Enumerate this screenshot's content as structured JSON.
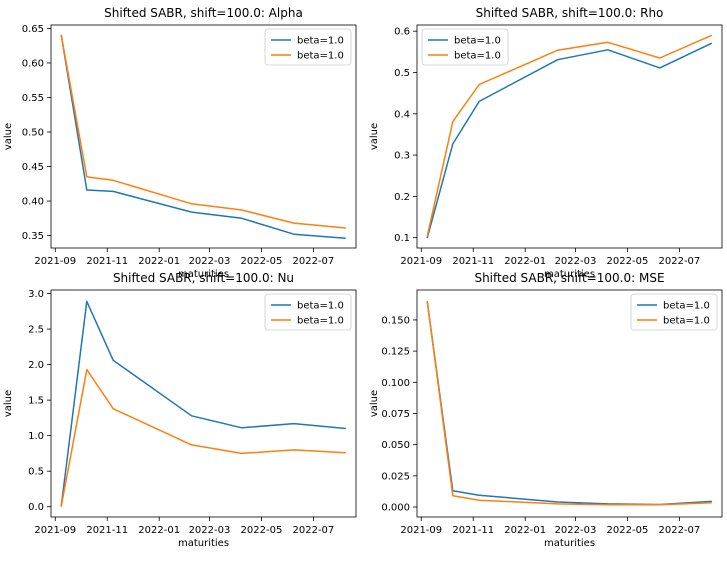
{
  "chart_data": [
    {
      "type": "line",
      "title": "Shifted SABR, shift=100.0: Alpha",
      "xlabel": "maturities",
      "ylabel": "value",
      "x": [
        "2021-09-08",
        "2021-10-08",
        "2021-11-08",
        "2022-02-08",
        "2022-04-08",
        "2022-06-08",
        "2022-08-08"
      ],
      "xticks": [
        "2021-09",
        "2021-11",
        "2022-01",
        "2022-03",
        "2022-05",
        "2022-07"
      ],
      "yticks": [
        "0.35",
        "0.40",
        "0.45",
        "0.50",
        "0.55",
        "0.60",
        "0.65"
      ],
      "ylim": [
        0.332,
        0.655
      ],
      "legend": "top-right",
      "series": [
        {
          "name": "beta=1.0",
          "color": "#1f77b4",
          "values": [
            0.641,
            0.416,
            0.414,
            0.384,
            0.375,
            0.352,
            0.346
          ]
        },
        {
          "name": "beta=1.0",
          "color": "#ff7f0e",
          "values": [
            0.641,
            0.435,
            0.43,
            0.396,
            0.387,
            0.368,
            0.361
          ]
        }
      ]
    },
    {
      "type": "line",
      "title": "Shifted SABR, shift=100.0: Rho",
      "xlabel": "maturities",
      "ylabel": "value",
      "x": [
        "2021-09-08",
        "2021-10-08",
        "2021-11-08",
        "2022-02-08",
        "2022-04-08",
        "2022-06-08",
        "2022-08-08"
      ],
      "xticks": [
        "2021-09",
        "2021-11",
        "2022-01",
        "2022-03",
        "2022-05",
        "2022-07"
      ],
      "yticks": [
        "0.1",
        "0.2",
        "0.3",
        "0.4",
        "0.5",
        "0.6"
      ],
      "ylim": [
        0.075,
        0.615
      ],
      "legend": "top-left",
      "series": [
        {
          "name": "beta=1.0",
          "color": "#1f77b4",
          "values": [
            0.099,
            0.327,
            0.43,
            0.531,
            0.555,
            0.511,
            0.571
          ]
        },
        {
          "name": "beta=1.0",
          "color": "#ff7f0e",
          "values": [
            0.103,
            0.381,
            0.471,
            0.554,
            0.573,
            0.535,
            0.59
          ]
        }
      ]
    },
    {
      "type": "line",
      "title": "Shifted SABR, shift=100.0: Nu",
      "xlabel": "maturities",
      "ylabel": "value",
      "x": [
        "2021-09-08",
        "2021-10-08",
        "2021-11-08",
        "2022-02-08",
        "2022-04-08",
        "2022-06-08",
        "2022-08-08"
      ],
      "xticks": [
        "2021-09",
        "2021-11",
        "2022-01",
        "2022-03",
        "2022-05",
        "2022-07"
      ],
      "yticks": [
        "0.0",
        "0.5",
        "1.0",
        "1.5",
        "2.0",
        "2.5",
        "3.0"
      ],
      "ylim": [
        -0.145,
        3.05
      ],
      "legend": "top-right",
      "series": [
        {
          "name": "beta=1.0",
          "color": "#1f77b4",
          "values": [
            0.0,
            2.89,
            2.06,
            1.28,
            1.11,
            1.17,
            1.1
          ]
        },
        {
          "name": "beta=1.0",
          "color": "#ff7f0e",
          "values": [
            0.0,
            1.93,
            1.38,
            0.87,
            0.75,
            0.8,
            0.76
          ]
        }
      ]
    },
    {
      "type": "line",
      "title": "Shifted SABR, shift=100.0: MSE",
      "xlabel": "maturities",
      "ylabel": "value",
      "x": [
        "2021-09-08",
        "2021-10-08",
        "2021-11-08",
        "2022-02-08",
        "2022-04-08",
        "2022-06-08",
        "2022-08-08"
      ],
      "xticks": [
        "2021-09",
        "2021-11",
        "2022-01",
        "2022-03",
        "2022-05",
        "2022-07"
      ],
      "yticks": [
        "0.000",
        "0.025",
        "0.050",
        "0.075",
        "0.100",
        "0.125",
        "0.150"
      ],
      "ylim": [
        -0.008,
        0.174
      ],
      "legend": "top-right",
      "series": [
        {
          "name": "beta=1.0",
          "color": "#1f77b4",
          "values": [
            0.165,
            0.013,
            0.0095,
            0.004,
            0.0025,
            0.002,
            0.0045
          ]
        },
        {
          "name": "beta=1.0",
          "color": "#ff7f0e",
          "values": [
            0.165,
            0.009,
            0.0055,
            0.0025,
            0.0018,
            0.0018,
            0.0035
          ]
        }
      ]
    }
  ]
}
